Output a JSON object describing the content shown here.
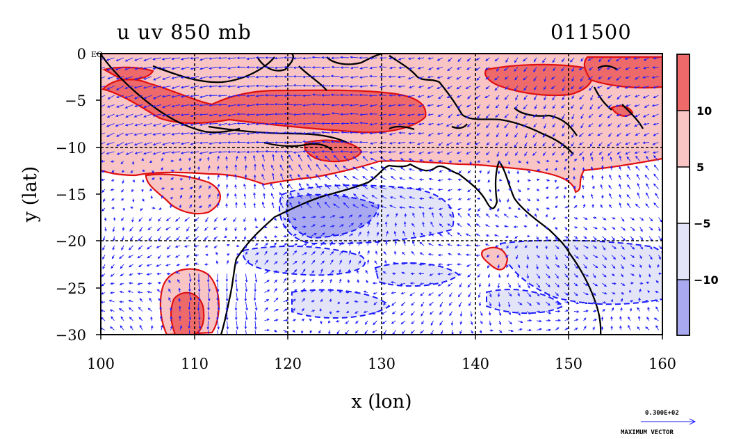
{
  "plot": {
    "title_left": "u uv 850 mb",
    "title_right": "011500",
    "xlabel": "x (lon)",
    "ylabel": "y (lat)",
    "eq_label": "EQ",
    "x_ticks": [
      "100",
      "110",
      "120",
      "130",
      "140",
      "150",
      "160"
    ],
    "y_ticks": [
      "0",
      "−5",
      "−10",
      "−15",
      "−20",
      "−25",
      "−30"
    ]
  },
  "colorbar": {
    "labels": [
      "10",
      "5",
      "−5",
      "−10"
    ],
    "colors": [
      "#ee6a6a",
      "#f8c4c4",
      "#ffffff",
      "#e4e4f8",
      "#a9a9f0"
    ]
  },
  "vector_key": {
    "magnitude": "0.300E+02",
    "caption": "MAXIMUM VECTOR"
  },
  "colors": {
    "positive_contour": "#e01010",
    "negative_contour": "#1a1aff",
    "arrow": "#1a1aff",
    "coast": "#000000"
  }
}
